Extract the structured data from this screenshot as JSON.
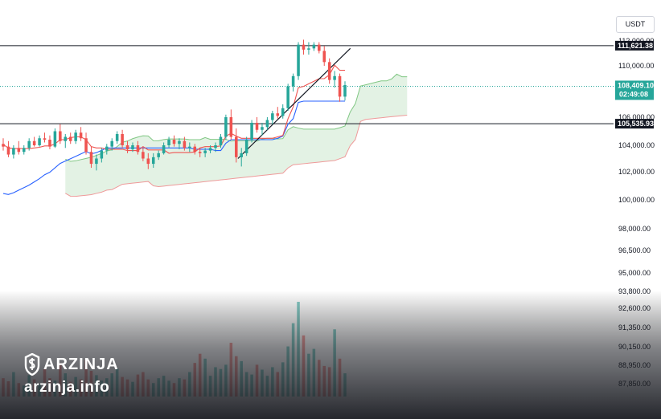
{
  "currency": "USDT",
  "brand": {
    "name": "ARZINJA",
    "url": "arzinja.info"
  },
  "colors": {
    "up": "#26a69a",
    "down": "#ef5350",
    "tenkan": "#ef5350",
    "kijun": "#2962ff",
    "cloud_bull": "#c8e6c9",
    "cloud_line_a": "#81c784",
    "cloud_line_b": "#ef9a9a"
  },
  "chart_data": {
    "type": "candlestick",
    "y_axis_ticks": [
      "112,000.00",
      "110,000.00",
      "106,000.00",
      "104,000.00",
      "102,000.00",
      "100,000.00",
      "98,000.00",
      "96,500.00",
      "95,000.00",
      "93,800.00",
      "92,600.00",
      "91,350.00",
      "90,150.00",
      "88,950.00",
      "87,850.00"
    ],
    "horizontal_lines": [
      {
        "label": "111,621.38",
        "value": 111621.38
      },
      {
        "label": "105,535.93",
        "value": 105535.93
      }
    ],
    "current_price": {
      "label": "108,409.10",
      "countdown": "02:49:08",
      "value": 108409.1
    },
    "trendline": {
      "from": [
        0.36,
        103000
      ],
      "to": [
        0.53,
        111400
      ]
    },
    "candles": [
      [
        104100,
        104500,
        103600,
        103900
      ],
      [
        103900,
        104300,
        103100,
        103300
      ],
      [
        103300,
        104000,
        103000,
        103800
      ],
      [
        103800,
        104300,
        103300,
        103500
      ],
      [
        103500,
        104000,
        103300,
        103800
      ],
      [
        103800,
        104500,
        103600,
        104300
      ],
      [
        104300,
        104600,
        103900,
        104000
      ],
      [
        104000,
        104700,
        103900,
        104500
      ],
      [
        104500,
        104900,
        104200,
        104400
      ],
      [
        104400,
        104700,
        103700,
        103900
      ],
      [
        103900,
        105200,
        103800,
        105000
      ],
      [
        105000,
        105500,
        104100,
        104300
      ],
      [
        104300,
        104800,
        103800,
        104600
      ],
      [
        104600,
        104900,
        104100,
        104300
      ],
      [
        104300,
        105100,
        104100,
        104900
      ],
      [
        104900,
        105300,
        104300,
        104500
      ],
      [
        104500,
        104900,
        103300,
        103500
      ],
      [
        103500,
        103900,
        102300,
        102600
      ],
      [
        102600,
        103300,
        102100,
        103000
      ],
      [
        103000,
        103800,
        102700,
        103600
      ],
      [
        103600,
        104100,
        103300,
        103900
      ],
      [
        103900,
        104500,
        103600,
        104300
      ],
      [
        104300,
        105000,
        104100,
        104800
      ],
      [
        104800,
        105100,
        103800,
        104000
      ],
      [
        104000,
        104300,
        103400,
        103700
      ],
      [
        103700,
        104200,
        103500,
        104000
      ],
      [
        104000,
        104300,
        103300,
        103500
      ],
      [
        103500,
        103800,
        102800,
        103000
      ],
      [
        103000,
        103400,
        102200,
        102600
      ],
      [
        102600,
        103400,
        102300,
        103100
      ],
      [
        103100,
        103600,
        102900,
        103400
      ],
      [
        103400,
        104200,
        103300,
        104000
      ],
      [
        104000,
        104600,
        103800,
        104400
      ],
      [
        104400,
        104700,
        103900,
        104100
      ],
      [
        104100,
        104500,
        103700,
        104300
      ],
      [
        104300,
        104600,
        103600,
        103800
      ],
      [
        103800,
        104200,
        103500,
        103900
      ],
      [
        103900,
        104100,
        103300,
        103500
      ],
      [
        103500,
        103800,
        103100,
        103400
      ],
      [
        103400,
        103800,
        103100,
        103600
      ],
      [
        103600,
        104000,
        103400,
        103800
      ],
      [
        103800,
        104200,
        103500,
        104000
      ],
      [
        104000,
        104800,
        103800,
        104600
      ],
      [
        104600,
        106200,
        104400,
        106000
      ],
      [
        106000,
        106600,
        104400,
        104600
      ],
      [
        104600,
        105200,
        102700,
        103100
      ],
      [
        103100,
        103800,
        102400,
        103400
      ],
      [
        103400,
        104600,
        103200,
        104400
      ],
      [
        104400,
        105800,
        104200,
        105600
      ],
      [
        105600,
        106000,
        104900,
        105100
      ],
      [
        105100,
        105600,
        104700,
        105300
      ],
      [
        105300,
        106000,
        105100,
        105800
      ],
      [
        105800,
        106500,
        105500,
        106300
      ],
      [
        106300,
        106800,
        105900,
        106100
      ],
      [
        106100,
        107000,
        105900,
        106700
      ],
      [
        106700,
        108600,
        106500,
        108400
      ],
      [
        108400,
        109400,
        108000,
        109200
      ],
      [
        109200,
        111900,
        108900,
        111700
      ],
      [
        111700,
        112100,
        110900,
        111300
      ],
      [
        111300,
        111900,
        110900,
        111400
      ],
      [
        111400,
        111900,
        111200,
        111700
      ],
      [
        111700,
        111900,
        111000,
        111200
      ],
      [
        111200,
        111600,
        110000,
        110300
      ],
      [
        110300,
        110600,
        108600,
        108900
      ],
      [
        108900,
        109600,
        108300,
        109200
      ],
      [
        109200,
        109400,
        107200,
        107600
      ],
      [
        107600,
        108800,
        107300,
        108500
      ]
    ],
    "volume": [
      30,
      25,
      40,
      22,
      18,
      35,
      28,
      20,
      45,
      30,
      26,
      55,
      38,
      24,
      32,
      28,
      60,
      42,
      35,
      26,
      30,
      38,
      46,
      32,
      28,
      24,
      36,
      40,
      28,
      22,
      30,
      34,
      26,
      22,
      30,
      28,
      40,
      55,
      70,
      62,
      34,
      48,
      45,
      52,
      88,
      66,
      58,
      40,
      36,
      52,
      44,
      34,
      48,
      40,
      56,
      82,
      120,
      155,
      100,
      70,
      78,
      60,
      50,
      48,
      110,
      62,
      38
    ]
  }
}
